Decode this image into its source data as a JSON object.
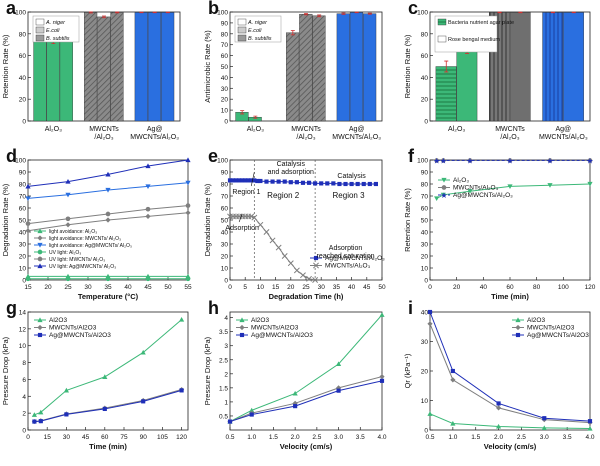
{
  "figure": {
    "panel_labels": [
      "a",
      "b",
      "c",
      "d",
      "e",
      "f",
      "g",
      "h",
      "i"
    ]
  },
  "colors": {
    "green": "#3cb878",
    "gray": "#7f7f7f",
    "blue": "#2a6fe0",
    "navy": "#1f2fb8",
    "red": "#d32f2f",
    "dark": "#333333"
  },
  "chart_data": [
    {
      "panel": "a",
      "type": "bar",
      "ylabel": "Retention Rate (%)",
      "ylim": [
        0,
        100
      ],
      "yticks": [
        0,
        20,
        40,
        60,
        80,
        100
      ],
      "categories": [
        "Al₂O₃",
        "MWCNTs /Al₂O₃",
        "Ag@ MWCNTs/Al₂O₃"
      ],
      "series": [
        {
          "name": "A. niger",
          "values": [
            81,
            99.6,
            99.6
          ],
          "errors": [
            2.5,
            0.5,
            0.3
          ]
        },
        {
          "name": "E.coli",
          "values": [
            74,
            95.5,
            99.6
          ],
          "errors": [
            3,
            0.8,
            0.3
          ]
        },
        {
          "name": "B. subtilis",
          "values": [
            79,
            99.6,
            99.6
          ],
          "errors": [
            2.5,
            0.4,
            0.3
          ]
        }
      ],
      "legend_position": "top-left"
    },
    {
      "panel": "b",
      "type": "bar",
      "ylabel": "Antimicrobic Rate (%)",
      "ylim": [
        0,
        100
      ],
      "yticks": [
        0,
        10,
        20,
        30,
        40,
        50,
        60,
        70,
        80,
        90,
        100
      ],
      "categories": [
        "Al₂O₃",
        "MWCNTs /Al₂O₃",
        "Ag@ MWCNTs/Al₂O₃"
      ],
      "series": [
        {
          "name": "A. niger",
          "values": [
            8,
            81,
            98.5
          ],
          "errors": [
            1.5,
            2,
            0.6
          ]
        },
        {
          "name": "E.coli",
          "values": [
            3.5,
            98,
            99.6
          ],
          "errors": [
            1,
            0.6,
            0.3
          ]
        },
        {
          "name": "B. subtilis",
          "values": [
            0,
            96.5,
            98.5
          ],
          "errors": [
            0,
            0.8,
            0.5
          ]
        }
      ],
      "legend_position": "top-left"
    },
    {
      "panel": "c",
      "type": "bar",
      "ylabel": "Retention Rate (%)",
      "ylim": [
        0,
        100
      ],
      "yticks": [
        0,
        20,
        40,
        60,
        80,
        100
      ],
      "categories": [
        "Al₂O₃",
        "MWCNTs /Al₂O₃",
        "Ag@ MWCNTs/Al₂O₃"
      ],
      "series": [
        {
          "name": "Bacteria nutrient agar plate",
          "values": [
            50,
            99.6,
            99.6
          ],
          "errors": [
            5,
            0.3,
            0.3
          ]
        },
        {
          "name": "Rose bengal medium",
          "values": [
            66,
            99.6,
            99.6
          ],
          "errors": [
            4,
            0.3,
            0.3
          ]
        }
      ],
      "legend_position": "top-left"
    },
    {
      "panel": "d",
      "type": "line",
      "xlabel": "Temperature (°C)",
      "ylabel": "Degradation Rate (%)",
      "xlim": [
        15,
        55
      ],
      "ylim": [
        0,
        100
      ],
      "xticks": [
        15,
        20,
        25,
        30,
        35,
        40,
        45,
        50,
        55
      ],
      "yticks": [
        0,
        10,
        20,
        30,
        40,
        50,
        60,
        70,
        80,
        90,
        100
      ],
      "x": [
        15,
        25,
        35,
        45,
        55
      ],
      "series": [
        {
          "name": "light avoidance: Al₂O₃",
          "values": [
            3,
            3,
            3,
            3,
            3
          ],
          "marker": "triangle",
          "color": "#3cb878"
        },
        {
          "name": "light avoidance: MWCNTs/ Al₂O₃",
          "values": [
            41,
            46,
            50,
            53,
            56
          ],
          "marker": "diamond",
          "color": "#7f7f7f"
        },
        {
          "name": "light avoidance: Ag@MWCNTs/ Al₂O₃",
          "values": [
            68,
            71,
            75,
            78,
            81
          ],
          "marker": "triangle-down",
          "color": "#2a6fe0"
        },
        {
          "name": "UV light: Al₂O₃",
          "values": [
            1,
            1,
            1,
            1,
            1
          ],
          "marker": "circle",
          "color": "#3cb878"
        },
        {
          "name": "UV light: MWCNTs/ Al₂O₃",
          "values": [
            47,
            51,
            55,
            59,
            62
          ],
          "marker": "circle",
          "color": "#7f7f7f"
        },
        {
          "name": "UV light: Ag@MWCNTs/ Al₂O₃",
          "values": [
            78,
            82,
            88,
            95,
            100
          ],
          "marker": "triangle",
          "color": "#1f2fb8"
        }
      ],
      "legend_position": "bottom"
    },
    {
      "panel": "e",
      "type": "line",
      "xlabel": "Degradation Time (h)",
      "ylabel": "Degradation Rate (%)",
      "xlim": [
        0,
        50
      ],
      "ylim": [
        0,
        100
      ],
      "xticks": [
        0,
        5,
        10,
        15,
        20,
        25,
        30,
        35,
        40,
        45,
        50
      ],
      "yticks": [
        0,
        10,
        20,
        30,
        40,
        50,
        60,
        70,
        80,
        90,
        100
      ],
      "series": [
        {
          "name": "Ag@MWCNTs/Al₂O₃",
          "marker": "square",
          "color": "#1f2fb8",
          "x": [
            0,
            1,
            2,
            3,
            4,
            5,
            6,
            7,
            8,
            9,
            10,
            12,
            14,
            16,
            18,
            20,
            22,
            24,
            26,
            28,
            30,
            32,
            34,
            36,
            38,
            40,
            42,
            44,
            46,
            48
          ],
          "values": [
            83,
            83,
            83,
            83,
            83,
            83,
            83,
            83,
            83,
            82.5,
            82.5,
            82,
            82,
            82,
            82,
            81.5,
            81.5,
            81,
            81,
            80.5,
            80.5,
            80.5,
            80.5,
            80,
            80,
            80,
            80,
            80,
            80,
            80
          ]
        },
        {
          "name": "MWCNTs/Al₂O₃",
          "marker": "x",
          "color": "#7f7f7f",
          "x": [
            0,
            1,
            2,
            3,
            4,
            5,
            6,
            7,
            8,
            10,
            12,
            14,
            16,
            18,
            20,
            22,
            24,
            26,
            28
          ],
          "values": [
            53,
            53,
            53,
            53,
            53,
            53,
            53,
            53,
            52,
            46,
            40,
            33,
            27,
            20,
            14,
            8,
            4,
            1,
            0
          ]
        }
      ],
      "annotations": [
        "Catalysis and adsorption",
        "Catalysis",
        "Region 1",
        "Region 2",
        "Region 3",
        "Adsorption",
        "Adsorption reached saturation"
      ],
      "vlines": [
        8,
        28
      ],
      "legend_position": "bottom-right"
    },
    {
      "panel": "f",
      "type": "line",
      "xlabel": "Time (min)",
      "ylabel": "Retention Rate (%)",
      "xlim": [
        0,
        120
      ],
      "ylim": [
        0,
        100
      ],
      "xticks": [
        0,
        20,
        40,
        60,
        80,
        100,
        120
      ],
      "yticks": [
        0,
        10,
        20,
        30,
        40,
        50,
        60,
        70,
        80,
        90,
        100
      ],
      "x": [
        5,
        10,
        30,
        60,
        90,
        120
      ],
      "series": [
        {
          "name": "Al₂O₃",
          "values": [
            68,
            71,
            74,
            78,
            79,
            80
          ],
          "marker": "triangle-down",
          "color": "#3cb878"
        },
        {
          "name": "MWCNTs/Al₂O₃",
          "values": [
            99.6,
            99.6,
            99.6,
            99.6,
            99.6,
            99.6
          ],
          "marker": "circle",
          "color": "#7f7f7f"
        },
        {
          "name": "Ag@MWCNTs/Al₂O₃",
          "values": [
            99.7,
            99.7,
            99.7,
            99.7,
            99.7,
            99.7
          ],
          "marker": "star",
          "color": "#1f2fb8",
          "dashed": true
        }
      ],
      "legend_position": "center-left"
    },
    {
      "panel": "g",
      "type": "line",
      "xlabel": "Time (min)",
      "ylabel": "Pressure Drop (kPa)",
      "xlim": [
        0,
        125
      ],
      "ylim": [
        0,
        14
      ],
      "xticks": [
        0,
        15,
        30,
        45,
        60,
        75,
        90,
        105,
        120
      ],
      "yticks": [
        0,
        2,
        4,
        6,
        8,
        10,
        12,
        14
      ],
      "x": [
        5,
        10,
        30,
        60,
        90,
        120
      ],
      "series": [
        {
          "name": "Al2O3",
          "values": [
            1.8,
            2.1,
            4.7,
            6.3,
            9.2,
            13.1
          ],
          "marker": "triangle",
          "color": "#3cb878"
        },
        {
          "name": "MWCNTs/Al2O3",
          "values": [
            1.0,
            1.1,
            1.9,
            2.6,
            3.5,
            4.8
          ],
          "marker": "diamond",
          "color": "#7f7f7f"
        },
        {
          "name": "Ag@MWCNTs/Al2O3",
          "values": [
            1.0,
            1.05,
            1.85,
            2.5,
            3.4,
            4.7
          ],
          "marker": "square",
          "color": "#1f2fb8"
        }
      ],
      "legend_position": "top-left"
    },
    {
      "panel": "h",
      "type": "line",
      "xlabel": "Velocity (cm/s)",
      "ylabel": "Pressure Drop (kPa)",
      "xlim": [
        0.5,
        4.0
      ],
      "ylim": [
        0,
        4.2
      ],
      "xticks": [
        0.5,
        1.0,
        1.5,
        2.0,
        2.5,
        3.0,
        3.5,
        4.0
      ],
      "yticks": [
        0.5,
        1.0,
        1.5,
        2.0,
        2.5,
        3.0,
        3.5,
        4.0
      ],
      "x": [
        0.5,
        1.0,
        2.0,
        3.0,
        4.0
      ],
      "series": [
        {
          "name": "Al2O3",
          "values": [
            0.3,
            0.7,
            1.3,
            2.35,
            4.1
          ],
          "marker": "triangle",
          "color": "#3cb878"
        },
        {
          "name": "MWCNTs/Al2O3",
          "values": [
            0.3,
            0.6,
            0.95,
            1.5,
            1.9
          ],
          "marker": "diamond",
          "color": "#7f7f7f"
        },
        {
          "name": "Ag@MWCNTs/Al2O3",
          "values": [
            0.3,
            0.55,
            0.85,
            1.4,
            1.75
          ],
          "marker": "square",
          "color": "#1f2fb8"
        }
      ],
      "legend_position": "top-left"
    },
    {
      "panel": "i",
      "type": "line",
      "xlabel": "Velocity (cm/s)",
      "ylabel": "Qr (kPa⁻¹)",
      "xlim": [
        0.5,
        4.0
      ],
      "ylim": [
        0,
        40
      ],
      "xticks": [
        0.5,
        1.0,
        1.5,
        2.0,
        2.5,
        3.0,
        3.5,
        4.0
      ],
      "yticks": [
        0,
        10,
        20,
        30,
        40
      ],
      "x": [
        0.5,
        1.0,
        2.0,
        3.0,
        4.0
      ],
      "series": [
        {
          "name": "Al2O3",
          "values": [
            5.5,
            2.2,
            1.2,
            0.7,
            0.5
          ],
          "marker": "triangle",
          "color": "#3cb878"
        },
        {
          "name": "MWCNTs/Al2O3",
          "values": [
            36,
            17,
            7.5,
            3.5,
            2.5
          ],
          "marker": "diamond",
          "color": "#7f7f7f"
        },
        {
          "name": "Ag@MWCNTs/Al2O3",
          "values": [
            40,
            20,
            9,
            4,
            3
          ],
          "marker": "square",
          "color": "#1f2fb8"
        }
      ],
      "legend_position": "top-right"
    }
  ]
}
